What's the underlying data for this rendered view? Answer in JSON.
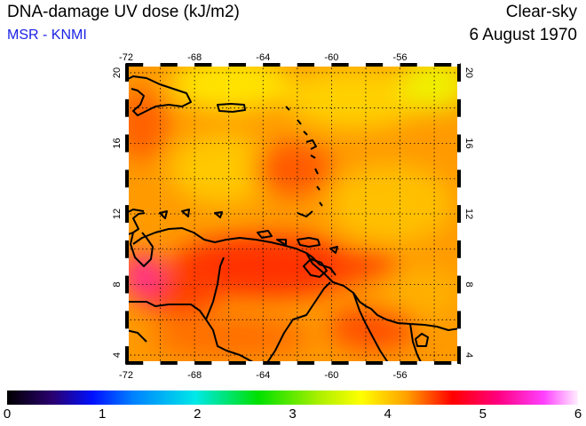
{
  "header": {
    "title": "DNA-damage UV dose (kJ/m2)",
    "source": "MSR - KNMI",
    "condition": "Clear-sky",
    "date": "6 August 1970"
  },
  "map": {
    "lon_ticks": [
      "-72",
      "-68",
      "-64",
      "-60",
      "-56"
    ],
    "lat_ticks": [
      "20",
      "16",
      "12",
      "8",
      "4"
    ],
    "lon_range": [
      -72,
      -52.5
    ],
    "lat_range": [
      3.5,
      20.5
    ],
    "background_color": "#ff9a00"
  },
  "colorbar": {
    "ticks": [
      "0",
      "1",
      "2",
      "3",
      "4",
      "5",
      "6"
    ],
    "range": [
      0,
      6
    ]
  }
}
